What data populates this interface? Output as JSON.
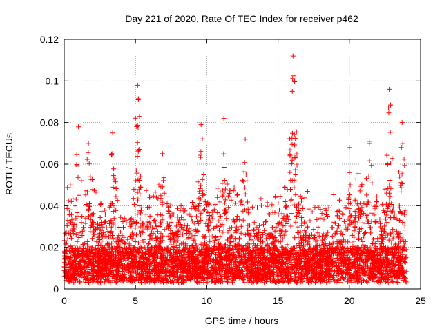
{
  "chart_data": {
    "type": "scatter",
    "title": "Day 221 of 2020, Rate Of TEC Index for receiver p462",
    "xlabel": "GPS time / hours",
    "ylabel": "ROTI / TECUs",
    "xlim": [
      0,
      25
    ],
    "ylim": [
      0,
      0.12
    ],
    "xticks": [
      0,
      5,
      10,
      15,
      20,
      25
    ],
    "yticks": [
      0,
      0.02,
      0.04,
      0.06,
      0.08,
      0.1,
      0.12
    ],
    "xtick_labels": [
      "0",
      "5",
      "10",
      "15",
      "20",
      "25"
    ],
    "ytick_labels": [
      "0",
      "0.02",
      "0.04",
      "0.06",
      "0.08",
      "0.1",
      "0.12"
    ],
    "grid": true,
    "marker": "+",
    "series_color": "#ff0000",
    "x_range_of_data": [
      0,
      24
    ],
    "peaks": [
      {
        "x": 1.0,
        "y": 0.078
      },
      {
        "x": 1.7,
        "y": 0.07
      },
      {
        "x": 3.4,
        "y": 0.075
      },
      {
        "x": 5.15,
        "y": 0.098
      },
      {
        "x": 5.2,
        "y": 0.091
      },
      {
        "x": 6.9,
        "y": 0.065
      },
      {
        "x": 9.6,
        "y": 0.079
      },
      {
        "x": 11.2,
        "y": 0.082
      },
      {
        "x": 12.7,
        "y": 0.072
      },
      {
        "x": 16.05,
        "y": 0.112
      },
      {
        "x": 16.1,
        "y": 0.1
      },
      {
        "x": 16.0,
        "y": 0.095
      },
      {
        "x": 20.0,
        "y": 0.068
      },
      {
        "x": 21.4,
        "y": 0.071
      },
      {
        "x": 22.8,
        "y": 0.096
      },
      {
        "x": 22.75,
        "y": 0.087
      },
      {
        "x": 23.7,
        "y": 0.08
      },
      {
        "x": 23.75,
        "y": 0.07
      }
    ]
  }
}
